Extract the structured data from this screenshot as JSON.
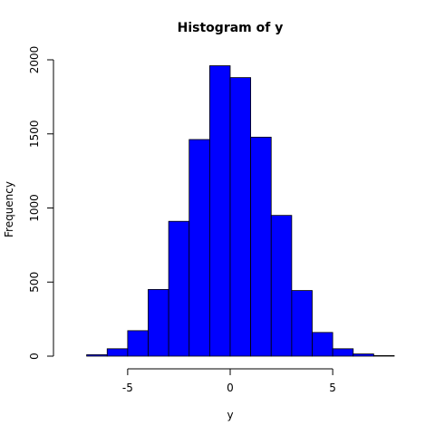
{
  "chart_data": {
    "type": "bar",
    "title": "Histogram of y",
    "xlabel": "y",
    "ylabel": "Frequency",
    "bin_edges": [
      -7,
      -6,
      -5,
      -4,
      -3,
      -2,
      -1,
      0,
      1,
      2,
      3,
      4,
      5,
      6,
      7,
      8
    ],
    "values": [
      10,
      50,
      172,
      450,
      910,
      1462,
      1960,
      1880,
      1478,
      950,
      443,
      160,
      50,
      15,
      4
    ],
    "xlim": [
      -8,
      8
    ],
    "ylim": [
      0,
      2000
    ],
    "x_ticks": [
      -5,
      0,
      5
    ],
    "y_ticks": [
      0,
      500,
      1000,
      1500,
      2000
    ],
    "bar_color": "#0000ff",
    "grid": false
  }
}
